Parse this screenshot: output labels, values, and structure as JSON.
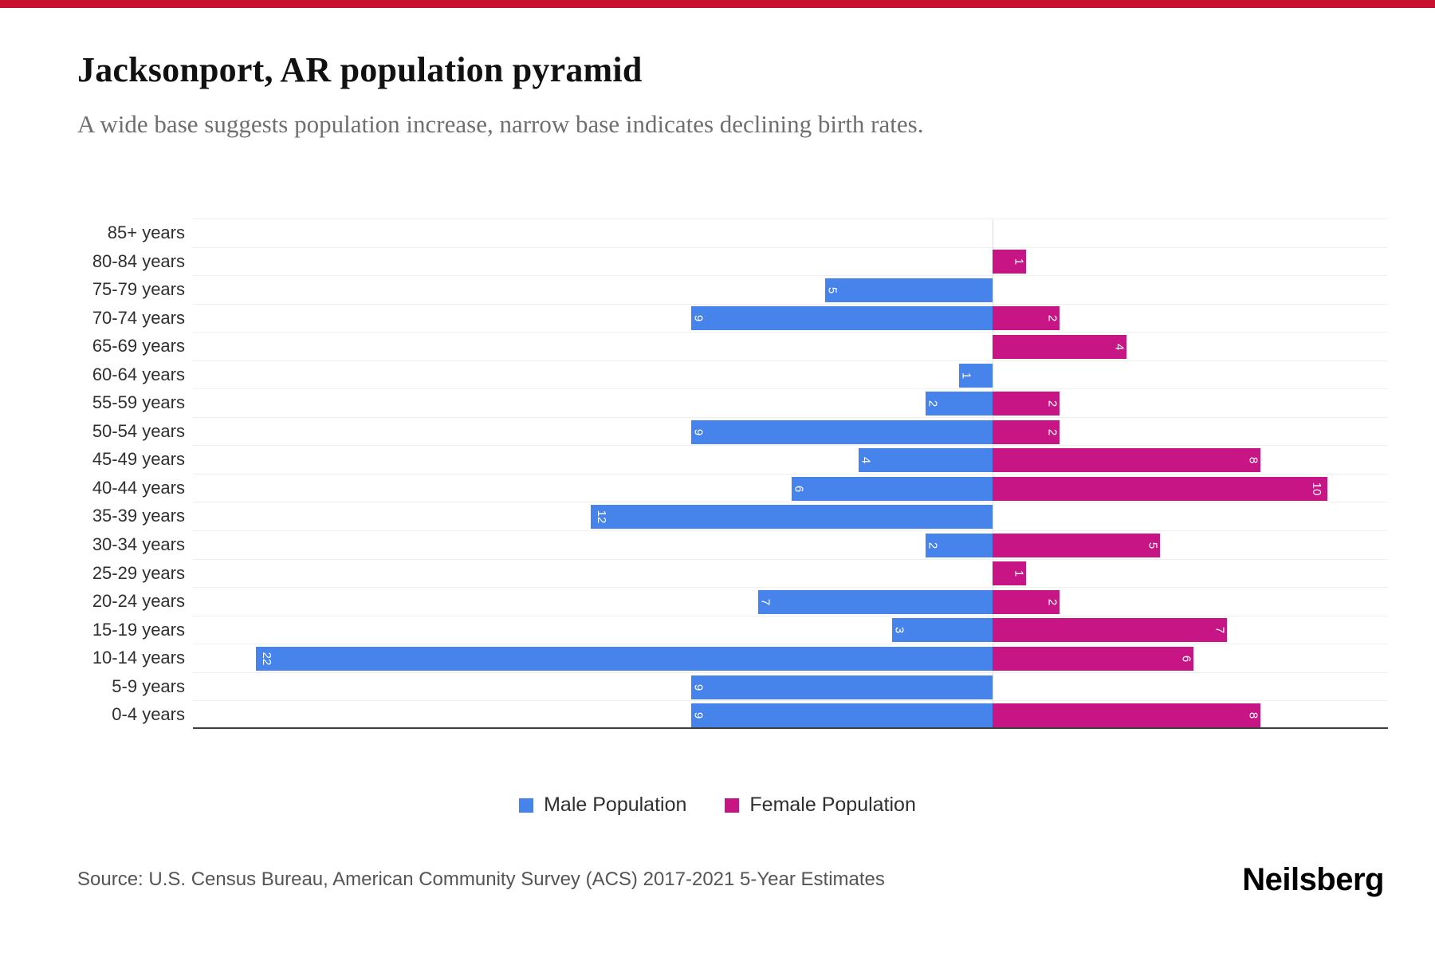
{
  "header": {
    "title": "Jacksonport, AR population pyramid",
    "subtitle": "A wide base suggests population increase, narrow base indicates declining birth rates."
  },
  "chart_data": {
    "type": "bar",
    "variant": "population-pyramid",
    "title": "Jacksonport, AR population pyramid",
    "categories": [
      "85+ years",
      "80-84 years",
      "75-79 years",
      "70-74 years",
      "65-69 years",
      "60-64 years",
      "55-59 years",
      "50-54 years",
      "45-49 years",
      "40-44 years",
      "35-39 years",
      "30-34 years",
      "25-29 years",
      "20-24 years",
      "15-19 years",
      "10-14 years",
      "5-9 years",
      "0-4 years"
    ],
    "series": [
      {
        "name": "Male Population",
        "color": "#4683EA",
        "direction": "left",
        "values": [
          0,
          0,
          5,
          9,
          0,
          1,
          2,
          9,
          4,
          6,
          12,
          2,
          0,
          7,
          3,
          22,
          9,
          9
        ]
      },
      {
        "name": "Female Population",
        "color": "#C71585",
        "direction": "right",
        "values": [
          0,
          1,
          0,
          2,
          4,
          0,
          2,
          2,
          8,
          10,
          0,
          5,
          1,
          2,
          7,
          6,
          0,
          8
        ]
      }
    ],
    "axis": {
      "male_max": 22,
      "female_max": 10,
      "baseline_color": "#3d3d3d",
      "centerline_color": "#dcdcdc",
      "gridlines": "horizontal-faint"
    },
    "legend_position": "bottom",
    "value_label_style": "white, rotated, inside far end of bar"
  },
  "legend": {
    "male_label": "Male Population",
    "female_label": "Female Population"
  },
  "footer": {
    "source": "Source: U.S. Census Bureau, American Community Survey (ACS) 2017-2021 5-Year Estimates",
    "logo": "Neilsberg"
  },
  "accent_color": "#C8102E"
}
